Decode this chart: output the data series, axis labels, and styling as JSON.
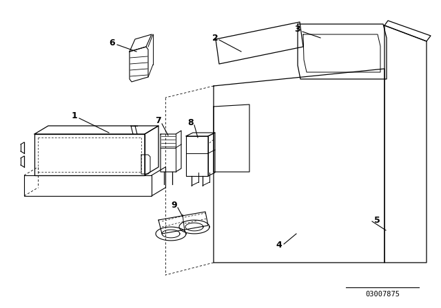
{
  "background_color": "#ffffff",
  "line_color": "#000000",
  "part_number": "03007875",
  "figsize": [
    6.4,
    4.48
  ],
  "dpi": 100
}
